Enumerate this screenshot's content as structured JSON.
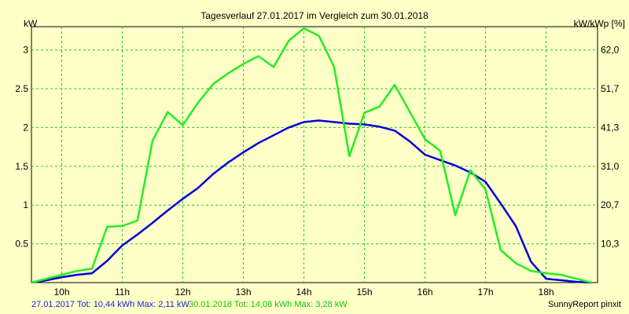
{
  "chart_data": {
    "type": "line",
    "title": "Tagesverlauf 27.01.2017 im Vergleich zum 30.01.2018",
    "ylabel_left": "kW",
    "ylabel_right": "kW/kWp [%]",
    "xlim": [
      9.5,
      18.85
    ],
    "ylim": [
      0,
      3.3
    ],
    "x_ticks": [
      10,
      11,
      12,
      13,
      14,
      15,
      16,
      17,
      18
    ],
    "x_tick_labels": [
      "10h",
      "11h",
      "12h",
      "13h",
      "14h",
      "15h",
      "16h",
      "17h",
      "18h"
    ],
    "y_left_ticks": [
      0.5,
      1,
      1.5,
      2,
      2.5,
      3
    ],
    "y_left_tick_labels": [
      "0.5",
      "1",
      "1.5",
      "2",
      "2.5",
      "3"
    ],
    "y_right_ticks": [
      0.5,
      1,
      1.5,
      2,
      2.5,
      3
    ],
    "y_right_tick_labels": [
      "10,3",
      "20,7",
      "31,0",
      "41,3",
      "51,7",
      "62,0"
    ],
    "grid": true,
    "series": [
      {
        "name": "27.01.2017",
        "color": "#0000dd",
        "points": [
          [
            9.5,
            0.0
          ],
          [
            9.75,
            0.03
          ],
          [
            10.0,
            0.07
          ],
          [
            10.25,
            0.1
          ],
          [
            10.5,
            0.12
          ],
          [
            10.75,
            0.28
          ],
          [
            11.0,
            0.48
          ],
          [
            11.25,
            0.62
          ],
          [
            11.5,
            0.77
          ],
          [
            11.75,
            0.93
          ],
          [
            12.0,
            1.08
          ],
          [
            12.25,
            1.22
          ],
          [
            12.5,
            1.4
          ],
          [
            12.75,
            1.55
          ],
          [
            13.0,
            1.68
          ],
          [
            13.25,
            1.8
          ],
          [
            13.5,
            1.9
          ],
          [
            13.75,
            2.0
          ],
          [
            14.0,
            2.07
          ],
          [
            14.25,
            2.09
          ],
          [
            14.5,
            2.07
          ],
          [
            14.75,
            2.05
          ],
          [
            15.0,
            2.04
          ],
          [
            15.25,
            2.01
          ],
          [
            15.5,
            1.96
          ],
          [
            15.75,
            1.82
          ],
          [
            16.0,
            1.65
          ],
          [
            16.25,
            1.58
          ],
          [
            16.5,
            1.51
          ],
          [
            16.75,
            1.42
          ],
          [
            17.0,
            1.3
          ],
          [
            17.25,
            1.02
          ],
          [
            17.5,
            0.73
          ],
          [
            17.75,
            0.27
          ],
          [
            18.0,
            0.05
          ],
          [
            18.25,
            0.03
          ],
          [
            18.5,
            0.01
          ],
          [
            18.75,
            0.0
          ]
        ]
      },
      {
        "name": "30.01.2018",
        "color": "#22ee22",
        "points": [
          [
            9.5,
            0.0
          ],
          [
            9.75,
            0.05
          ],
          [
            10.0,
            0.1
          ],
          [
            10.25,
            0.15
          ],
          [
            10.5,
            0.18
          ],
          [
            10.75,
            0.72
          ],
          [
            11.0,
            0.73
          ],
          [
            11.25,
            0.8
          ],
          [
            11.5,
            1.83
          ],
          [
            11.75,
            2.2
          ],
          [
            12.0,
            2.03
          ],
          [
            12.25,
            2.32
          ],
          [
            12.5,
            2.56
          ],
          [
            12.75,
            2.7
          ],
          [
            13.0,
            2.82
          ],
          [
            13.25,
            2.92
          ],
          [
            13.5,
            2.78
          ],
          [
            13.75,
            3.12
          ],
          [
            14.0,
            3.28
          ],
          [
            14.25,
            3.18
          ],
          [
            14.5,
            2.78
          ],
          [
            14.75,
            1.63
          ],
          [
            15.0,
            2.19
          ],
          [
            15.25,
            2.27
          ],
          [
            15.5,
            2.55
          ],
          [
            15.75,
            2.2
          ],
          [
            16.0,
            1.85
          ],
          [
            16.25,
            1.7
          ],
          [
            16.5,
            0.87
          ],
          [
            16.75,
            1.45
          ],
          [
            17.0,
            1.2
          ],
          [
            17.25,
            0.42
          ],
          [
            17.5,
            0.25
          ],
          [
            17.75,
            0.15
          ],
          [
            18.0,
            0.12
          ],
          [
            18.25,
            0.1
          ],
          [
            18.5,
            0.05
          ],
          [
            18.75,
            0.0
          ]
        ]
      }
    ]
  },
  "footer": {
    "series1_summary": "27.01.2017 Tot: 10,44 kWh Max: 2,11 kW",
    "series2_summary": "30.01.2018 Tot: 14,08 kWh Max: 3,28 kW",
    "brand": "SunnyReport pinxit"
  }
}
